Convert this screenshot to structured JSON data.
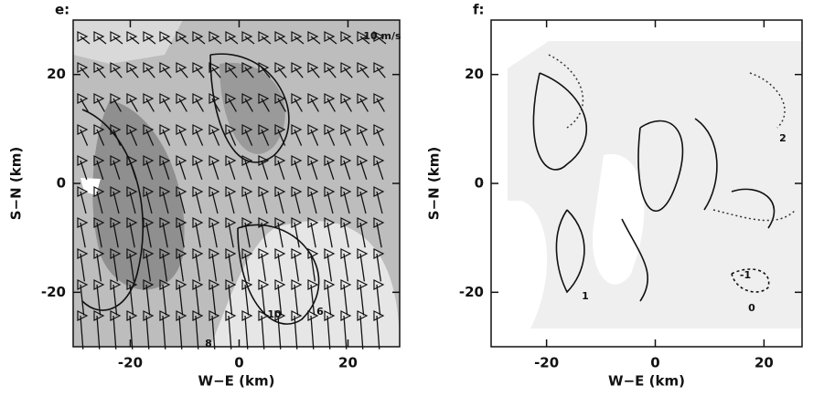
{
  "chart_data": [
    {
      "type": "contour",
      "title": "e:",
      "xlabel": "W−E (km)",
      "ylabel": "S−N (km)",
      "xlim": [
        -30.5,
        29.5
      ],
      "ylim": [
        -30,
        30
      ],
      "xticks": [
        -20,
        0,
        20
      ],
      "yticks": [
        -20,
        0,
        20
      ],
      "annotations": [
        "8",
        "10",
        "6",
        "10 m/s"
      ]
    },
    {
      "type": "contour",
      "title": "f:",
      "xlabel": "W−E (km)",
      "ylabel": "S−N (km)",
      "xlim": [
        -30.2,
        27
      ],
      "ylim": [
        -30,
        30
      ],
      "xticks": [
        -20,
        0,
        20
      ],
      "yticks": [
        -20,
        0,
        20
      ],
      "annotations": [
        "-1",
        "2",
        "0",
        "1"
      ]
    }
  ]
}
